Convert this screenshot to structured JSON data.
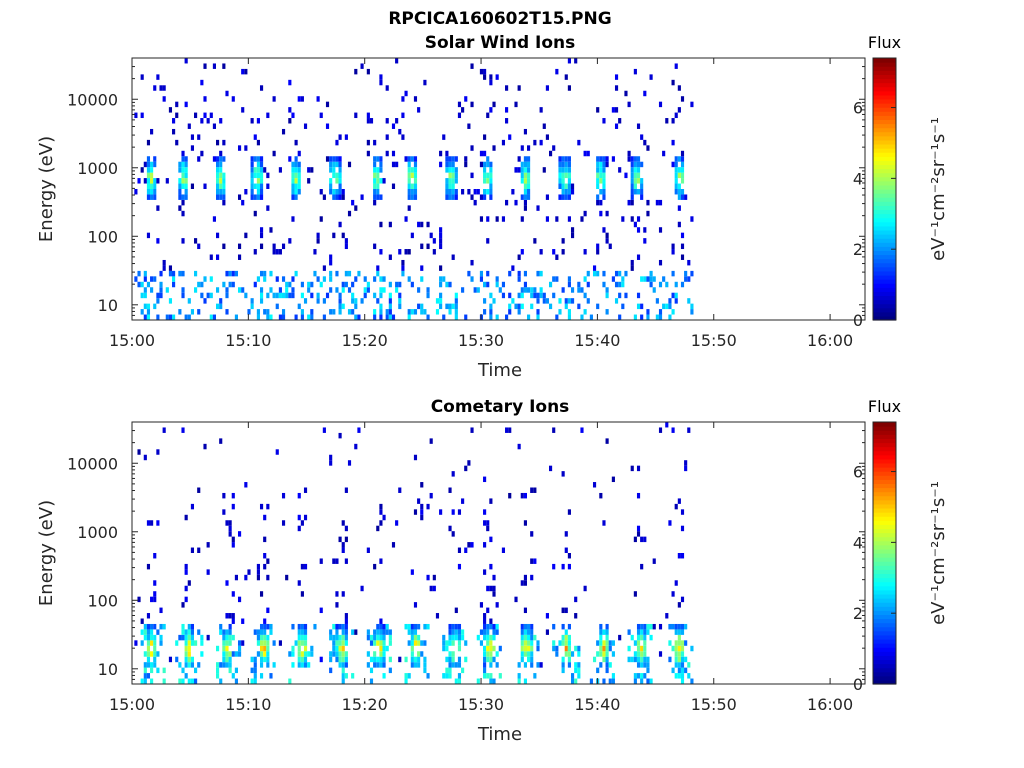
{
  "figure_title": "RPCICA160602T15.PNG",
  "colorbar": {
    "title": "Flux",
    "label": "eV⁻¹cm⁻²sr⁻¹s⁻¹",
    "ticks": [
      "0",
      "2",
      "4",
      "6"
    ],
    "range": [
      0,
      7.4
    ],
    "colormap": "jet"
  },
  "chart_data": [
    {
      "type": "heatmap",
      "title": "Solar Wind Ions",
      "xlabel": "Time",
      "ylabel": "Energy (eV)",
      "x_ticks": [
        "15:00",
        "15:10",
        "15:20",
        "15:30",
        "15:40",
        "15:50",
        "16:00"
      ],
      "xlim": [
        "15:00",
        "16:03"
      ],
      "data_end": "15:48",
      "y_scale": "log",
      "y_ticks": [
        "10",
        "100",
        "1000",
        "10000"
      ],
      "ylim": [
        6,
        40000
      ],
      "pulse_times_min": [
        1.5,
        4.3,
        7.5,
        10.6,
        14,
        17.3,
        20.9,
        23.9,
        27.3,
        30.4,
        33.7,
        37.1,
        40.1,
        43.3,
        46.9
      ],
      "peak_energy_eV": 700,
      "peak_flux": 4.3
    },
    {
      "type": "heatmap",
      "title": "Cometary Ions",
      "xlabel": "Time",
      "ylabel": "Energy (eV)",
      "x_ticks": [
        "15:00",
        "15:10",
        "15:20",
        "15:30",
        "15:40",
        "15:50",
        "16:00"
      ],
      "xlim": [
        "15:00",
        "16:03"
      ],
      "data_end": "15:48",
      "y_scale": "log",
      "y_ticks": [
        "10",
        "100",
        "1000",
        "10000"
      ],
      "ylim": [
        6,
        40000
      ],
      "pulse_times_min": [
        1.6,
        4.8,
        8.1,
        11.2,
        14.5,
        17.9,
        21.1,
        24.3,
        27.6,
        30.6,
        33.8,
        37.2,
        40.4,
        43.6,
        46.9
      ],
      "peak_energy_eV": 20,
      "peak_flux": 5.2
    }
  ]
}
